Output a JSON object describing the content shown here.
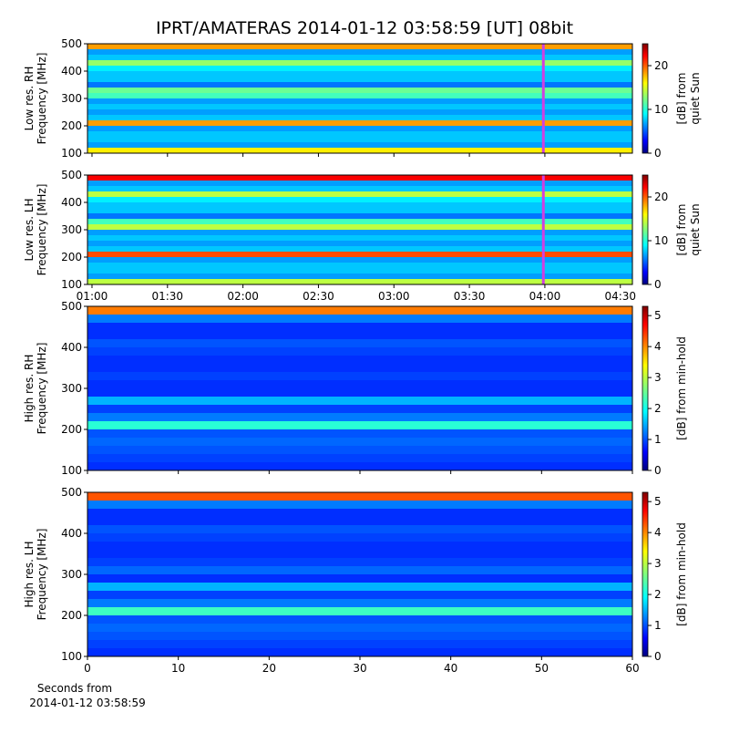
{
  "title": "IPRT/AMATERAS 2014-01-12 03:58:59 [UT]   08bit",
  "chart_data": [
    {
      "type": "spectrogram",
      "ylabel": [
        "Low res. RH",
        "Frequency [MHz]"
      ],
      "cmap": "jet",
      "xlim": [
        0.97,
        4.58
      ],
      "xticks": [
        1,
        1.5,
        2,
        2.5,
        3,
        3.5,
        4,
        4.5
      ],
      "show_xticklabels": false,
      "ylim": [
        100,
        500
      ],
      "yticks": [
        100,
        200,
        300,
        400,
        500
      ],
      "ybins": [
        100,
        120,
        140,
        160,
        180,
        200,
        220,
        240,
        260,
        280,
        300,
        320,
        340,
        360,
        380,
        400,
        420,
        440,
        460,
        480,
        500
      ],
      "values": [
        16,
        7,
        8,
        8,
        7,
        18,
        8,
        7,
        8,
        7,
        11,
        12,
        6,
        8,
        8,
        9,
        13,
        8,
        7,
        18
      ],
      "markers": [
        3.99
      ],
      "marker_color": "#d040e0",
      "clim": [
        0,
        25
      ],
      "cticks": [
        0,
        10,
        20
      ],
      "clabel": [
        "[dB] from",
        "quiet Sun"
      ]
    },
    {
      "type": "spectrogram",
      "ylabel": [
        "Low res. LH",
        "Frequency [MHz]"
      ],
      "cmap": "jet",
      "xlim": [
        0.97,
        4.58
      ],
      "xticks": [
        {
          "value": 1,
          "label": "01:00"
        },
        {
          "value": 1.5,
          "label": "01:30"
        },
        {
          "value": 2,
          "label": "02:00"
        },
        {
          "value": 2.5,
          "label": "02:30"
        },
        {
          "value": 3,
          "label": "03:00"
        },
        {
          "value": 3.5,
          "label": "03:30"
        },
        {
          "value": 4,
          "label": "04:00"
        },
        {
          "value": 4.5,
          "label": "04:30"
        }
      ],
      "show_xticklabels": true,
      "ylim": [
        100,
        500
      ],
      "yticks": [
        100,
        200,
        300,
        400,
        500
      ],
      "ybins": [
        100,
        120,
        140,
        160,
        180,
        200,
        220,
        240,
        260,
        280,
        300,
        320,
        340,
        360,
        380,
        400,
        420,
        440,
        460,
        480,
        500
      ],
      "values": [
        14,
        7,
        8,
        8,
        7,
        20,
        8,
        7,
        8,
        7,
        14,
        11,
        6,
        8,
        8,
        9,
        14,
        8,
        7,
        22
      ],
      "markers": [
        3.99
      ],
      "marker_color": "#d040e0",
      "clim": [
        0,
        25
      ],
      "cticks": [
        0,
        10,
        20
      ],
      "clabel": [
        "[dB] from",
        "quiet Sun"
      ]
    },
    {
      "type": "spectrogram",
      "ylabel": [
        "High res. RH",
        "Frequency [MHz]"
      ],
      "cmap": "jet",
      "xlim": [
        0,
        60
      ],
      "xticks": [
        0,
        10,
        20,
        30,
        40,
        50,
        60
      ],
      "show_xticklabels": false,
      "ylim": [
        100,
        500
      ],
      "yticks": [
        100,
        200,
        300,
        400,
        500
      ],
      "ybins": [
        100,
        120,
        140,
        160,
        180,
        200,
        220,
        240,
        260,
        280,
        300,
        320,
        340,
        360,
        380,
        400,
        420,
        440,
        460,
        480,
        500
      ],
      "values": [
        0.9,
        1.0,
        1.1,
        1.2,
        1.1,
        2.2,
        1.3,
        1.0,
        1.6,
        0.9,
        0.9,
        1.0,
        0.9,
        0.9,
        1.0,
        1.1,
        0.9,
        0.9,
        1.3,
        4.0
      ],
      "clim": [
        0,
        5.3
      ],
      "cticks": [
        0,
        1,
        2,
        3,
        4,
        5
      ],
      "clabel": [
        "[dB] from min-hold"
      ]
    },
    {
      "type": "spectrogram",
      "ylabel": [
        "High res. LH",
        "Frequency [MHz]"
      ],
      "cmap": "jet",
      "xlim": [
        0,
        60
      ],
      "xticks": [
        0,
        10,
        20,
        30,
        40,
        50,
        60
      ],
      "show_xticklabels": true,
      "xlabel": [
        "Seconds from",
        "2014-01-12 03:58:59"
      ],
      "ylim": [
        100,
        500
      ],
      "yticks": [
        100,
        200,
        300,
        400,
        500
      ],
      "ybins": [
        100,
        120,
        140,
        160,
        180,
        200,
        220,
        240,
        260,
        280,
        300,
        320,
        340,
        360,
        380,
        400,
        420,
        440,
        460,
        480,
        500
      ],
      "values": [
        0.9,
        1.0,
        1.1,
        1.2,
        1.1,
        2.3,
        1.3,
        1.0,
        1.6,
        0.9,
        1.2,
        1.0,
        0.9,
        0.9,
        1.0,
        1.1,
        0.9,
        0.9,
        1.3,
        4.2
      ],
      "clim": [
        0,
        5.3
      ],
      "cticks": [
        0,
        1,
        2,
        3,
        4,
        5
      ],
      "clabel": [
        "[dB] from min-hold"
      ]
    }
  ]
}
